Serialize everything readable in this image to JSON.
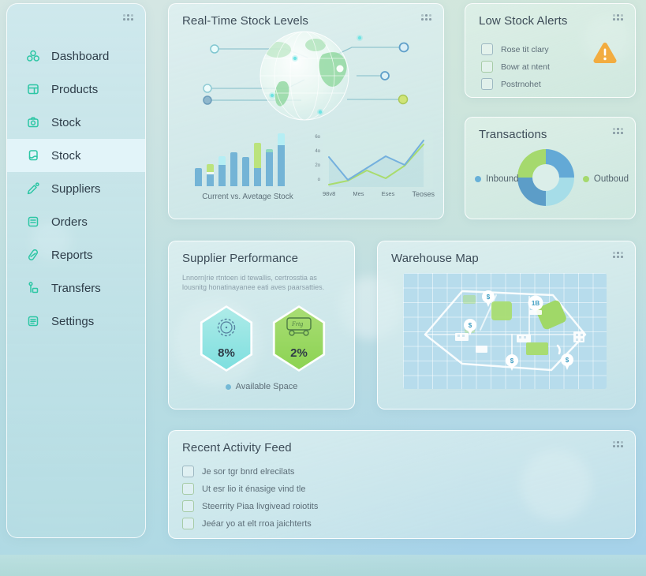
{
  "sidebar": {
    "items": [
      {
        "label": "Dashboard"
      },
      {
        "label": "Products"
      },
      {
        "label": "Stock"
      },
      {
        "label": "Stock",
        "active": true
      },
      {
        "label": "Suppliers"
      },
      {
        "label": "Orders"
      },
      {
        "label": "Reports"
      },
      {
        "label": "Transfers"
      },
      {
        "label": "Settings"
      }
    ]
  },
  "stock_levels": {
    "title": "Real-Time Stock Levels"
  },
  "low_stock": {
    "title": "Low Stock Alerts",
    "items": [
      {
        "label": "Rose tit clary"
      },
      {
        "label": "Bowr at ntent"
      },
      {
        "label": "Postrnohet"
      }
    ],
    "warning_color": "#f2ac40"
  },
  "transactions": {
    "title": "Transactions",
    "legend": [
      {
        "label": "Inbound",
        "color": "#68b0d8"
      },
      {
        "label": "Outboud",
        "color": "#a5d96d"
      }
    ]
  },
  "supplier": {
    "title": "Supplier Performance",
    "description": "Lnnorn|rie rtntoen id tewallis, certrosstia as lousnitg honatinayanee eati aves paarsatties.",
    "hexagons": [
      {
        "value": "8%",
        "icon": "badge-seal-icon"
      },
      {
        "value": "2%",
        "icon": "truck-icon"
      }
    ],
    "legend_label": "Available Space",
    "legend_color": "#74b9d6"
  },
  "warehouse": {
    "title": "Warehouse Map"
  },
  "activity": {
    "title": "Recent Activity Feed",
    "items": [
      {
        "label": "Je sor tgr bnrd elrecilats"
      },
      {
        "label": "Ut esr lio it énasige vind tle"
      },
      {
        "label": "Steerrity Piaa livgivead roiotits"
      },
      {
        "label": "Jeéar yo at elt rroa jaichterts"
      }
    ]
  },
  "chart_data": [
    {
      "type": "bar",
      "title": "Current vs. Avetage Stock",
      "ylim": [
        0,
        70
      ],
      "bars": [
        {
          "segments": [
            {
              "value": 23,
              "color": "#74b4d6"
            }
          ]
        },
        {
          "segments": [
            {
              "value": 15,
              "color": "#74b4d6"
            },
            {
              "value": 3,
              "color": "#eff8f4"
            },
            {
              "value": 10,
              "color": "#bbe37d"
            }
          ]
        },
        {
          "segments": [
            {
              "value": 27,
              "color": "#74b4d6"
            },
            {
              "value": 11,
              "color": "#b5eef4"
            }
          ]
        },
        {
          "segments": [
            {
              "value": 43,
              "color": "#74b4d6"
            }
          ]
        },
        {
          "segments": [
            {
              "value": 37,
              "color": "#74b4d6"
            }
          ]
        },
        {
          "segments": [
            {
              "value": 23,
              "color": "#74b4d6"
            },
            {
              "value": 32,
              "color": "#bbe37d"
            }
          ]
        },
        {
          "segments": [
            {
              "value": 43,
              "color": "#74b4d6"
            },
            {
              "value": 4,
              "color": "#8fd9c0"
            }
          ]
        },
        {
          "segments": [
            {
              "value": 52,
              "color": "#74b4d6"
            },
            {
              "value": 15,
              "color": "#b5eef4"
            }
          ]
        }
      ]
    },
    {
      "type": "line",
      "x_labels": [
        "98v8",
        "Mes",
        "Eses",
        "Teoses"
      ],
      "y_labels": [
        "6o",
        "4o",
        "2o",
        "o"
      ],
      "ylim": [
        0,
        65
      ],
      "series": [
        {
          "name": "series-blue",
          "color": "#74b0de",
          "values": [
            38,
            9,
            24,
            39,
            28,
            59
          ]
        },
        {
          "name": "series-green",
          "color": "#a9dc6d",
          "values": [
            3,
            8,
            21,
            11,
            27,
            54
          ]
        }
      ]
    },
    {
      "type": "pie",
      "title": "Transactions",
      "segments": [
        {
          "label": "Inbound",
          "value": 25,
          "color": "#63a9d6"
        },
        {
          "label": "Inbound",
          "value": 25,
          "color": "#a6dde8"
        },
        {
          "label": "Inbound",
          "value": 25,
          "color": "#5c9dc8"
        },
        {
          "label": "Outboud",
          "value": 25,
          "color": "#a5d96d"
        }
      ]
    }
  ]
}
